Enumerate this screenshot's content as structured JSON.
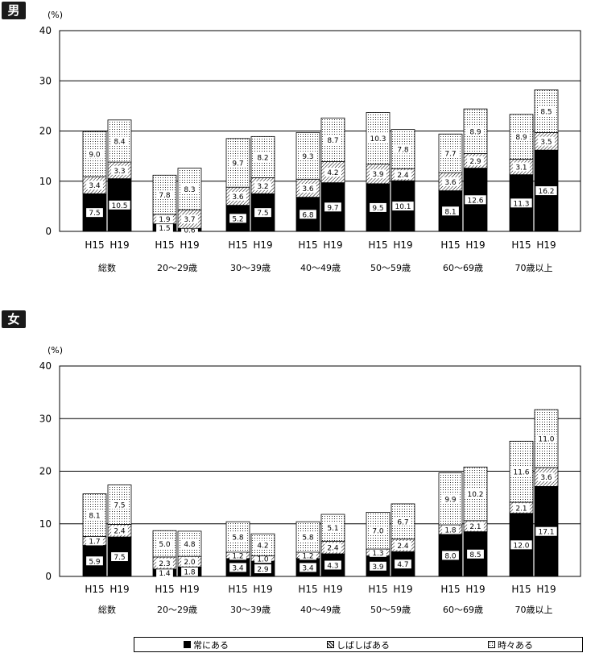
{
  "legend": {
    "always": "常にある",
    "often": "しばしばある",
    "sometimes": "時々ある"
  },
  "chart_data": [
    {
      "type": "bar",
      "title": "男",
      "unit": "(%)",
      "ylim": [
        0,
        40
      ],
      "yticks": [
        "0",
        "10",
        "20",
        "30",
        "40"
      ],
      "stacked": true,
      "groups": [
        {
          "name": "総数",
          "years": [
            "H15",
            "H19"
          ],
          "always": [
            7.5,
            10.5
          ],
          "often": [
            3.4,
            3.3
          ],
          "sometimes": [
            9.0,
            8.4
          ]
        },
        {
          "name": "20～29歳",
          "years": [
            "H15",
            "H19"
          ],
          "always": [
            1.5,
            0.6
          ],
          "often": [
            1.9,
            3.7
          ],
          "sometimes": [
            7.8,
            8.3
          ]
        },
        {
          "name": "30～39歳",
          "years": [
            "H15",
            "H19"
          ],
          "always": [
            5.2,
            7.5
          ],
          "often": [
            3.6,
            3.2
          ],
          "sometimes": [
            9.7,
            8.2
          ]
        },
        {
          "name": "40～49歳",
          "years": [
            "H15",
            "H19"
          ],
          "always": [
            6.8,
            9.7
          ],
          "often": [
            3.6,
            4.2
          ],
          "sometimes": [
            9.3,
            8.7
          ]
        },
        {
          "name": "50～59歳",
          "years": [
            "H15",
            "H19"
          ],
          "always": [
            9.5,
            10.1
          ],
          "often": [
            3.9,
            2.4
          ],
          "sometimes": [
            10.3,
            7.8
          ]
        },
        {
          "name": "60～69歳",
          "years": [
            "H15",
            "H19"
          ],
          "always": [
            8.1,
            12.6
          ],
          "often": [
            3.6,
            2.9
          ],
          "sometimes": [
            7.7,
            8.9
          ]
        },
        {
          "name": "70歳以上",
          "years": [
            "H15",
            "H19"
          ],
          "always": [
            11.3,
            16.2
          ],
          "often": [
            3.1,
            3.5
          ],
          "sometimes": [
            8.9,
            8.5
          ]
        }
      ]
    },
    {
      "type": "bar",
      "title": "女",
      "unit": "(%)",
      "ylim": [
        0,
        40
      ],
      "yticks": [
        "0",
        "10",
        "20",
        "30",
        "40"
      ],
      "stacked": true,
      "groups": [
        {
          "name": "総数",
          "years": [
            "H15",
            "H19"
          ],
          "always": [
            5.9,
            7.5
          ],
          "often": [
            1.7,
            2.4
          ],
          "sometimes": [
            8.1,
            7.5
          ]
        },
        {
          "name": "20～29歳",
          "years": [
            "H15",
            "H19"
          ],
          "always": [
            1.4,
            1.8
          ],
          "often": [
            2.3,
            2.0
          ],
          "sometimes": [
            5.0,
            4.8
          ]
        },
        {
          "name": "30～39歳",
          "years": [
            "H15",
            "H19"
          ],
          "always": [
            3.4,
            2.9
          ],
          "often": [
            1.2,
            1.0
          ],
          "sometimes": [
            5.8,
            4.2
          ]
        },
        {
          "name": "40～49歳",
          "years": [
            "H15",
            "H19"
          ],
          "always": [
            3.4,
            4.3
          ],
          "often": [
            1.2,
            2.4
          ],
          "sometimes": [
            5.8,
            5.1
          ]
        },
        {
          "name": "50～59歳",
          "years": [
            "H15",
            "H19"
          ],
          "always": [
            3.9,
            4.7
          ],
          "often": [
            1.3,
            2.4
          ],
          "sometimes": [
            7.0,
            6.7
          ]
        },
        {
          "name": "60～69歳",
          "years": [
            "H15",
            "H19"
          ],
          "always": [
            8.0,
            8.5
          ],
          "often": [
            1.8,
            2.1
          ],
          "sometimes": [
            9.9,
            10.2
          ]
        },
        {
          "name": "70歳以上",
          "years": [
            "H15",
            "H19"
          ],
          "always": [
            12.0,
            17.1
          ],
          "often": [
            2.1,
            3.6
          ],
          "sometimes": [
            11.6,
            11.0
          ]
        }
      ]
    }
  ]
}
